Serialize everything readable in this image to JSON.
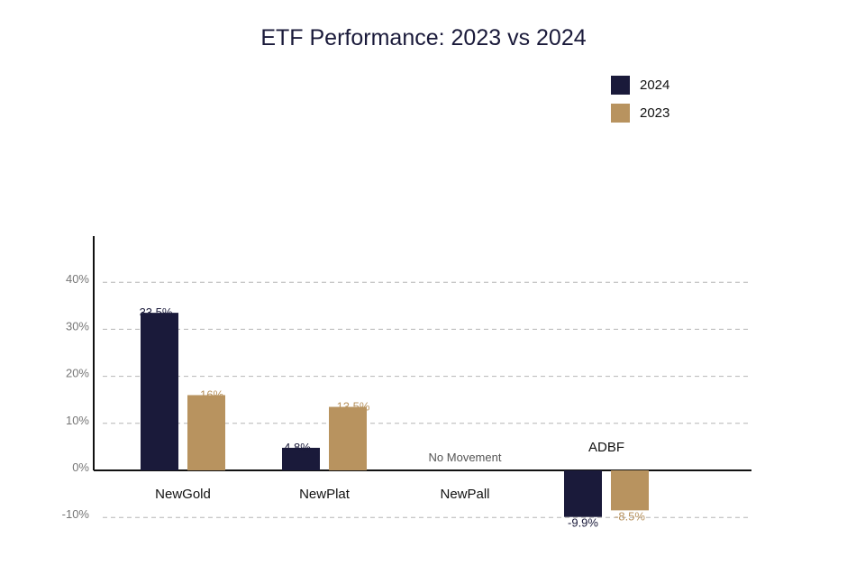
{
  "title": "ETF Performance: 2023 vs 2024",
  "legend": [
    {
      "label": "2024",
      "color": "#1a1a3a"
    },
    {
      "label": "2023",
      "color": "#b8935f"
    }
  ],
  "chart_data": {
    "type": "bar",
    "title": "ETF Performance: 2023 vs 2024",
    "categories": [
      "NewGold",
      "NewPlat",
      "NewPall",
      "ADBF"
    ],
    "series": [
      {
        "name": "2024",
        "color": "#1a1a3a",
        "values": [
          33.5,
          4.8,
          0,
          -9.9
        ],
        "labels": [
          "33.5%",
          "4.8%",
          "",
          "-9.9%"
        ]
      },
      {
        "name": "2023",
        "color": "#b8935f",
        "values": [
          16,
          13.5,
          0,
          -8.5
        ],
        "labels": [
          "16%",
          "13.5%",
          "",
          "-8.5%"
        ]
      }
    ],
    "yticks": [
      "-10%",
      "0%",
      "10%",
      "20%",
      "30%",
      "40%"
    ],
    "ylim": [
      -10,
      50
    ],
    "grid": true,
    "legend_position": "top-right",
    "annotations": [
      {
        "category": "NewPall",
        "text": "No Movement"
      }
    ]
  }
}
